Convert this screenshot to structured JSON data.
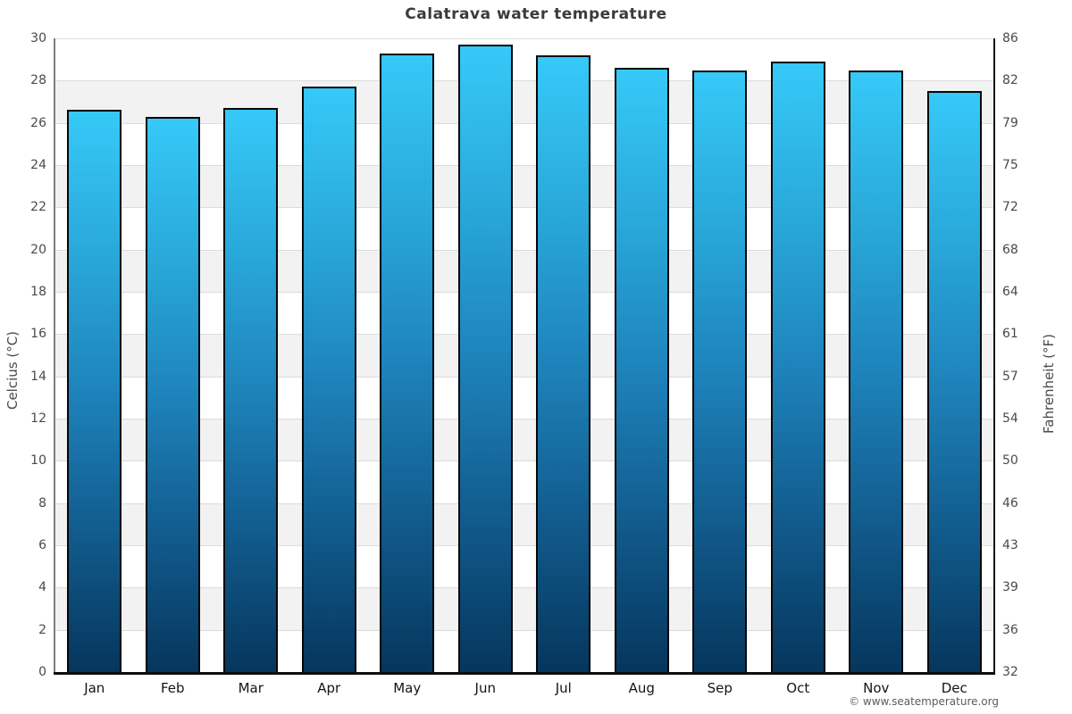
{
  "title": "Calatrava water temperature",
  "footer": {
    "copyright": "© www.seatemperature.org"
  },
  "chart_data": {
    "type": "bar",
    "title": "Calatrava water temperature",
    "categories": [
      "Jan",
      "Feb",
      "Mar",
      "Apr",
      "May",
      "Jun",
      "Jul",
      "Aug",
      "Sep",
      "Oct",
      "Nov",
      "Dec"
    ],
    "values": [
      26.6,
      26.3,
      26.7,
      27.7,
      29.3,
      29.7,
      29.2,
      28.6,
      28.5,
      28.9,
      28.5,
      27.5
    ],
    "unit": "°C",
    "xlabel": "",
    "ylabel_left": "Celcius (°C)",
    "ylabel_right": "Fahrenheit (°F)",
    "ylim": [
      0,
      30
    ],
    "ytick_step": 2,
    "left_ticks": [
      30,
      28,
      26,
      24,
      22,
      20,
      18,
      16,
      14,
      12,
      10,
      8,
      6,
      4,
      2,
      0
    ],
    "right_ticks": [
      86,
      82,
      79,
      75,
      72,
      68,
      64,
      61,
      57,
      54,
      50,
      46,
      43,
      39,
      36,
      32
    ],
    "grid": "horizontal, alternating shaded bands every 2°C",
    "legend": "none",
    "colors": {
      "bar_gradient_top": "#36c9f8",
      "bar_gradient_mid": "#1f86be",
      "bar_gradient_bottom": "#06365d",
      "bar_border": "#070707",
      "band_shaded": "#f2f2f2",
      "band_plain": "#ffffff",
      "gridline": "#dcdcdc",
      "title_text": "#3b3b3b",
      "tick_text": "#4a4a4a"
    }
  }
}
